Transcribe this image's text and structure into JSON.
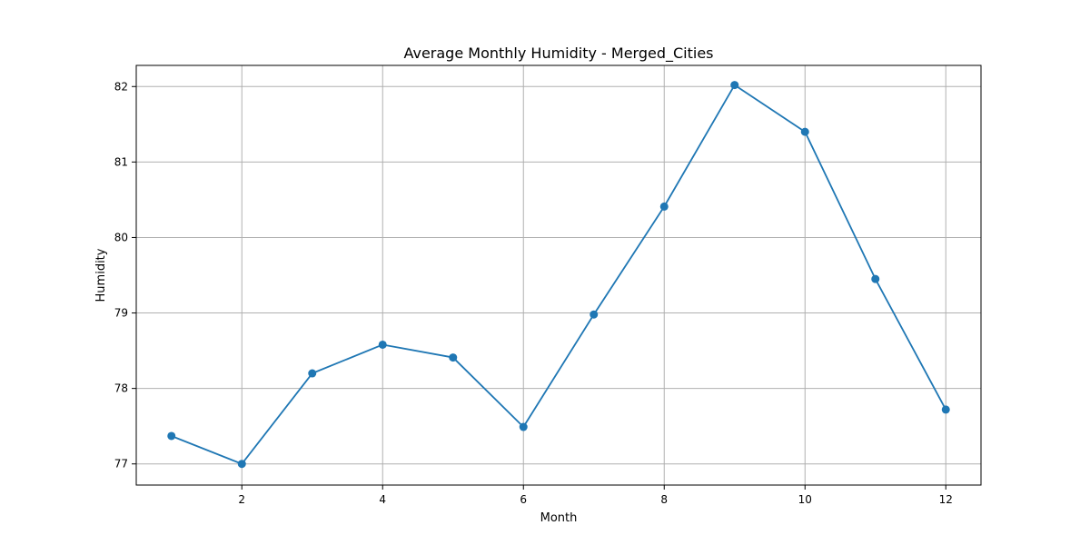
{
  "chart_data": {
    "type": "line",
    "title": "Average Monthly Humidity - Merged_Cities",
    "xlabel": "Month",
    "ylabel": "Humidity",
    "xlim": [
      0.5,
      12.5
    ],
    "ylim": [
      76.72,
      82.28
    ],
    "xticks": [
      2,
      4,
      6,
      8,
      10,
      12
    ],
    "yticks": [
      77,
      78,
      79,
      80,
      81,
      82
    ],
    "grid": true,
    "series": [
      {
        "color": "#1f77b4",
        "marker": "circle",
        "x": [
          1,
          2,
          3,
          4,
          5,
          6,
          7,
          8,
          9,
          10,
          11,
          12
        ],
        "y": [
          77.37,
          77.0,
          78.2,
          78.58,
          78.41,
          77.49,
          78.98,
          80.41,
          82.02,
          81.4,
          79.45,
          77.72
        ]
      }
    ]
  }
}
